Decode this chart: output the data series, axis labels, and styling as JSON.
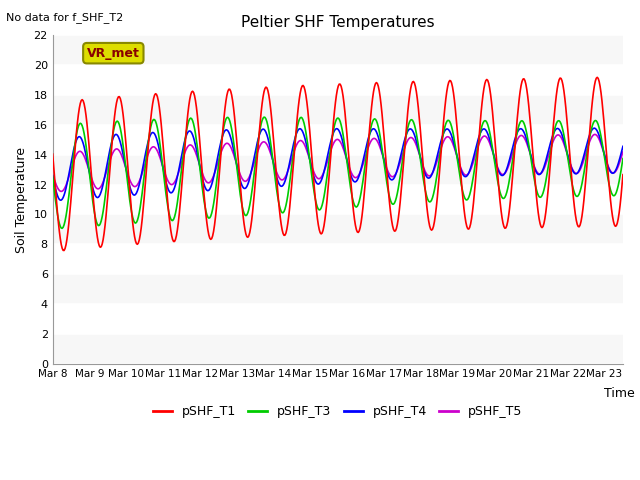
{
  "title": "Peltier SHF Temperatures",
  "subtitle": "No data for f_SHF_T2",
  "ylabel": "Soil Temperature",
  "xlabel": "Time",
  "ylim": [
    0,
    22
  ],
  "yticks": [
    0,
    2,
    4,
    6,
    8,
    10,
    12,
    14,
    16,
    18,
    20,
    22
  ],
  "xtick_labels": [
    "Mar 8",
    "Mar 9",
    "Mar 10",
    "Mar 11",
    "Mar 12",
    "Mar 13",
    "Mar 14",
    "Mar 15",
    "Mar 16",
    "Mar 17",
    "Mar 18",
    "Mar 19",
    "Mar 20",
    "Mar 21",
    "Mar 22",
    "Mar 23"
  ],
  "legend_label": "VR_met",
  "colors": {
    "pSHF_T1": "#ff0000",
    "pSHF_T3": "#00cc00",
    "pSHF_T4": "#0000ff",
    "pSHF_T5": "#cc00cc"
  },
  "bg_color": "#ffffff",
  "plot_bg_light": "#f0f0f0",
  "plot_bg_dark": "#e0e0e0",
  "grid_color": "#ffffff",
  "n_days": 15.5
}
